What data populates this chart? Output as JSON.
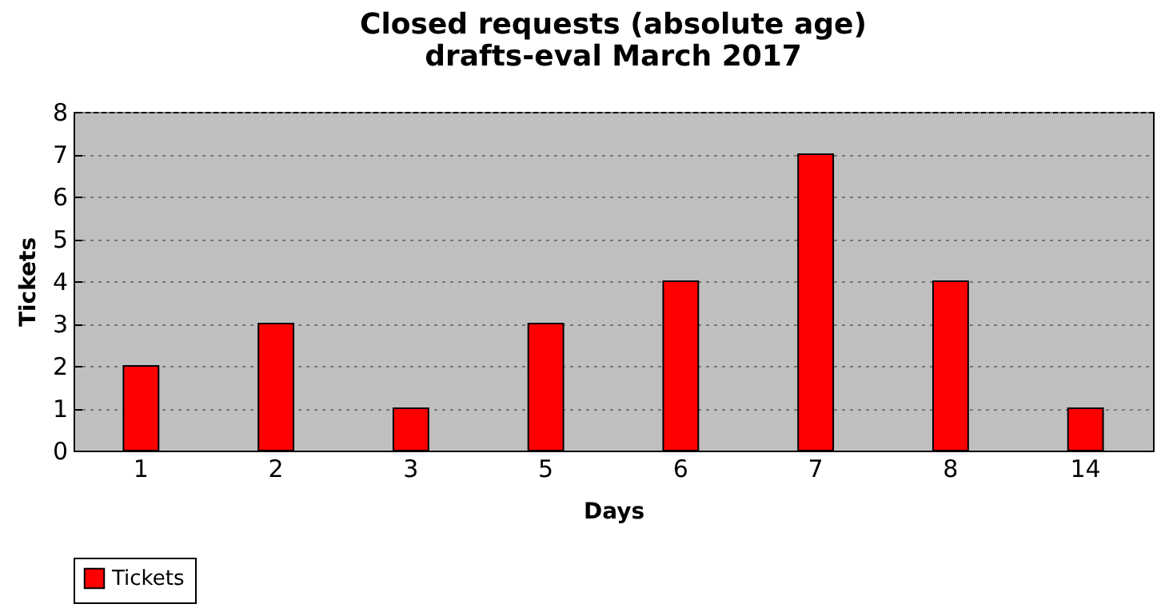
{
  "chart_data": {
    "type": "bar",
    "title": "Closed requests (absolute age)",
    "subtitle": "drafts-eval March 2017",
    "xlabel": "Days",
    "ylabel": "Tickets",
    "categories": [
      "1",
      "2",
      "3",
      "5",
      "6",
      "7",
      "8",
      "14"
    ],
    "series": [
      {
        "name": "Tickets",
        "color": "#ff0000",
        "values": [
          2,
          3,
          1,
          3,
          4,
          7,
          4,
          1
        ]
      }
    ],
    "ylim": [
      0,
      8
    ],
    "yticks": [
      0,
      1,
      2,
      3,
      4,
      5,
      6,
      7,
      8
    ],
    "grid": "y",
    "legend": "bottom"
  }
}
